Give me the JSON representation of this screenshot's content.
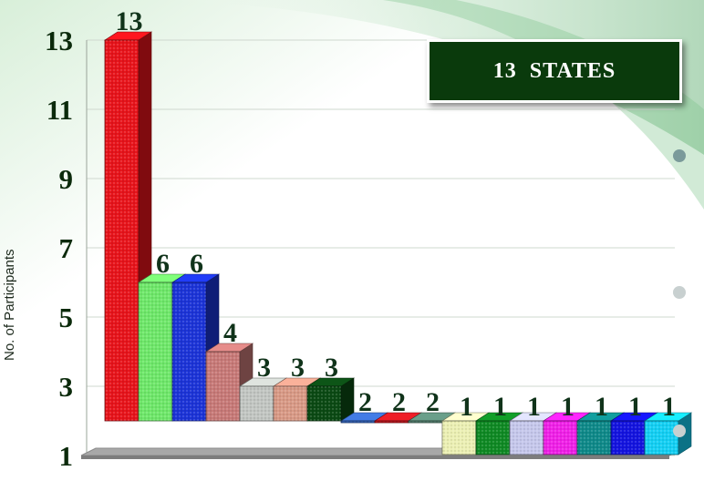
{
  "badge": {
    "text": "13  STATES"
  },
  "colors": {
    "title_box": "#0a3a0c",
    "tick_text": "#0b2a0b",
    "value_text": "#10331a"
  },
  "chart_data": {
    "type": "bar",
    "title": "",
    "xlabel": "",
    "ylabel": "No. of  Participants",
    "ylim": [
      1,
      13
    ],
    "yticks": [
      1,
      3,
      5,
      7,
      9,
      11,
      13
    ],
    "grid": true,
    "three_d": true,
    "values": [
      13,
      6,
      6,
      4,
      3,
      3,
      3,
      2,
      2,
      2,
      1,
      1,
      1,
      1,
      1,
      1,
      1
    ],
    "bar_colors": [
      "#e8141b",
      "#6fe86a",
      "#1c34d8",
      "#c87a78",
      "#c2c6c2",
      "#d99a86",
      "#0b4a14",
      "#3a6cc8",
      "#d01a22",
      "#5c8a78",
      "#ecf0b4",
      "#0f8a24",
      "#c6c8ec",
      "#f020e8",
      "#0f8a8a",
      "#1414e0",
      "#14d0f4"
    ]
  }
}
